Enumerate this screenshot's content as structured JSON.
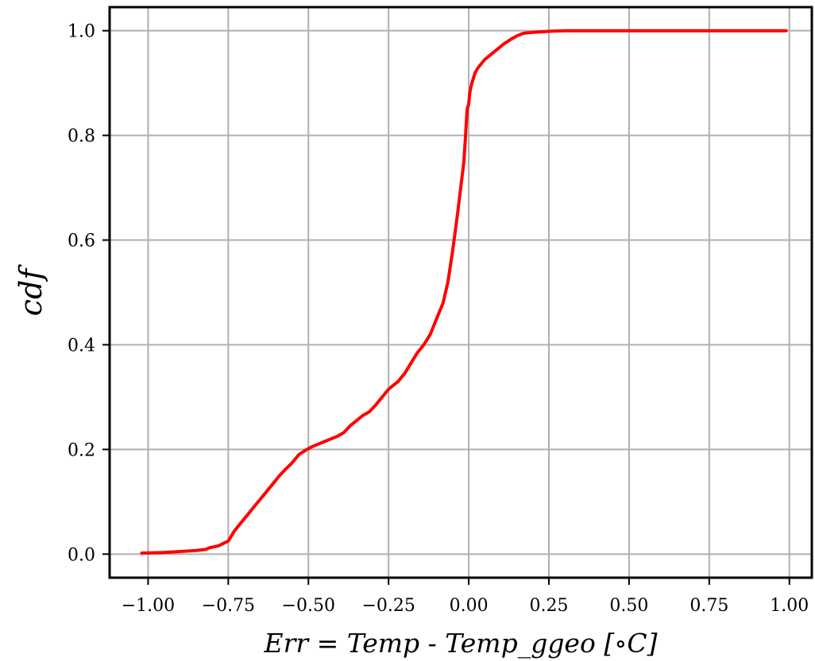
{
  "chart_data": {
    "type": "line",
    "title": "",
    "xlabel": "Err = Temp - Temp_ggeo [$^\\circ$C]",
    "xlabel_display": "Err = Temp - Temp_ggeo [∘C]",
    "ylabel": "cdf",
    "xlim": [
      -1.12,
      1.07
    ],
    "ylim": [
      -0.045,
      1.045
    ],
    "grid": true,
    "xticks": [
      -1.0,
      -0.75,
      -0.5,
      -0.25,
      0.0,
      0.25,
      0.5,
      0.75,
      1.0
    ],
    "xtick_labels": [
      "−1.00",
      "−0.75",
      "−0.50",
      "−0.25",
      "0.00",
      "0.25",
      "0.50",
      "0.75",
      "1.00"
    ],
    "yticks": [
      0.0,
      0.2,
      0.4,
      0.6,
      0.8,
      1.0
    ],
    "ytick_labels": [
      "0.0",
      "0.2",
      "0.4",
      "0.6",
      "0.8",
      "1.0"
    ],
    "series": [
      {
        "color": "#ff0000",
        "x": [
          -1.02,
          -0.95,
          -0.9,
          -0.85,
          -0.82,
          -0.81,
          -0.78,
          -0.75,
          -0.74,
          -0.73,
          -0.71,
          -0.69,
          -0.67,
          -0.65,
          -0.63,
          -0.61,
          -0.59,
          -0.57,
          -0.55,
          -0.53,
          -0.51,
          -0.49,
          -0.47,
          -0.45,
          -0.43,
          -0.41,
          -0.39,
          -0.37,
          -0.35,
          -0.33,
          -0.31,
          -0.29,
          -0.27,
          -0.25,
          -0.22,
          -0.2,
          -0.18,
          -0.16,
          -0.14,
          -0.12,
          -0.1,
          -0.08,
          -0.065,
          -0.05,
          -0.035,
          -0.025,
          -0.015,
          -0.01,
          -0.005,
          0.0,
          0.003,
          0.006,
          0.01,
          0.015,
          0.02,
          0.03,
          0.05,
          0.07,
          0.09,
          0.11,
          0.13,
          0.15,
          0.17,
          0.2,
          0.23,
          0.26,
          0.3,
          0.35,
          0.37,
          0.45,
          0.6,
          0.75,
          0.85,
          0.92,
          0.99
        ],
        "y": [
          0.002,
          0.003,
          0.005,
          0.007,
          0.009,
          0.012,
          0.016,
          0.025,
          0.035,
          0.045,
          0.06,
          0.075,
          0.09,
          0.105,
          0.12,
          0.135,
          0.15,
          0.163,
          0.175,
          0.19,
          0.198,
          0.205,
          0.21,
          0.215,
          0.22,
          0.225,
          0.232,
          0.245,
          0.255,
          0.265,
          0.272,
          0.285,
          0.3,
          0.315,
          0.33,
          0.345,
          0.365,
          0.385,
          0.4,
          0.42,
          0.45,
          0.48,
          0.52,
          0.58,
          0.65,
          0.7,
          0.75,
          0.8,
          0.85,
          0.86,
          0.88,
          0.89,
          0.9,
          0.91,
          0.92,
          0.93,
          0.945,
          0.955,
          0.965,
          0.975,
          0.983,
          0.99,
          0.995,
          0.997,
          0.998,
          0.999,
          1.0,
          1.0,
          1.0,
          1.0,
          1.0,
          1.0,
          1.0,
          1.0,
          1.0
        ]
      }
    ]
  }
}
